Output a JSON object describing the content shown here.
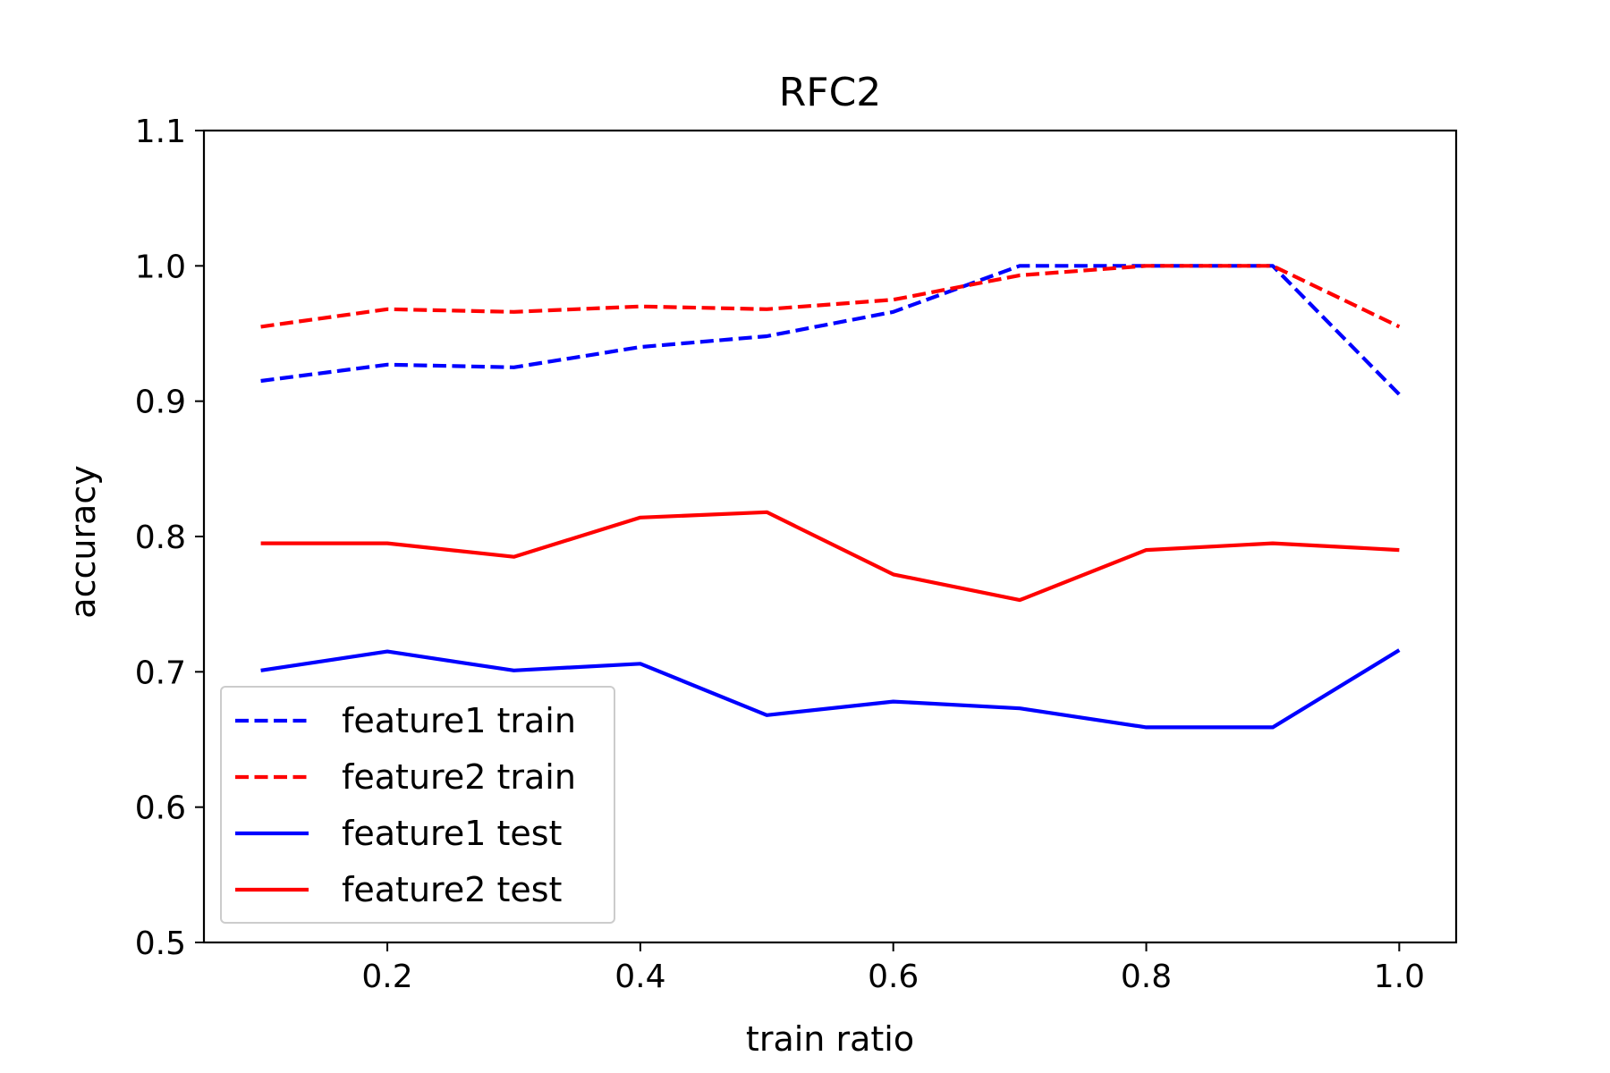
{
  "chart_data": {
    "type": "line",
    "title": "RFC2",
    "xlabel": "train ratio",
    "ylabel": "accuracy",
    "xlim": [
      0.055,
      1.045
    ],
    "ylim": [
      0.5,
      1.1
    ],
    "xticks": [
      0.2,
      0.4,
      0.6,
      0.8,
      1.0
    ],
    "xtick_labels": [
      "0.2",
      "0.4",
      "0.6",
      "0.8",
      "1.0"
    ],
    "yticks": [
      0.5,
      0.6,
      0.7,
      0.8,
      0.9,
      1.0,
      1.1
    ],
    "ytick_labels": [
      "0.5",
      "0.6",
      "0.7",
      "0.8",
      "0.9",
      "1.0",
      "1.1"
    ],
    "grid": false,
    "legend_position": "lower-left",
    "x": [
      0.1,
      0.2,
      0.3,
      0.4,
      0.5,
      0.6,
      0.7,
      0.8,
      0.9,
      1.0
    ],
    "series": [
      {
        "name": "feature1 train",
        "color": "#0000ff",
        "style": "dashed",
        "values": [
          0.915,
          0.927,
          0.925,
          0.94,
          0.948,
          0.966,
          1.0,
          1.0,
          1.0,
          0.905
        ]
      },
      {
        "name": "feature2 train",
        "color": "#ff0000",
        "style": "dashed",
        "values": [
          0.955,
          0.968,
          0.966,
          0.97,
          0.968,
          0.975,
          0.993,
          1.0,
          1.0,
          0.955
        ]
      },
      {
        "name": "feature1 test",
        "color": "#0000ff",
        "style": "solid",
        "values": [
          0.701,
          0.715,
          0.701,
          0.706,
          0.668,
          0.678,
          0.673,
          0.659,
          0.659,
          0.716
        ]
      },
      {
        "name": "feature2 test",
        "color": "#ff0000",
        "style": "solid",
        "values": [
          0.795,
          0.795,
          0.785,
          0.814,
          0.818,
          0.772,
          0.753,
          0.79,
          0.795,
          0.79
        ]
      }
    ]
  }
}
